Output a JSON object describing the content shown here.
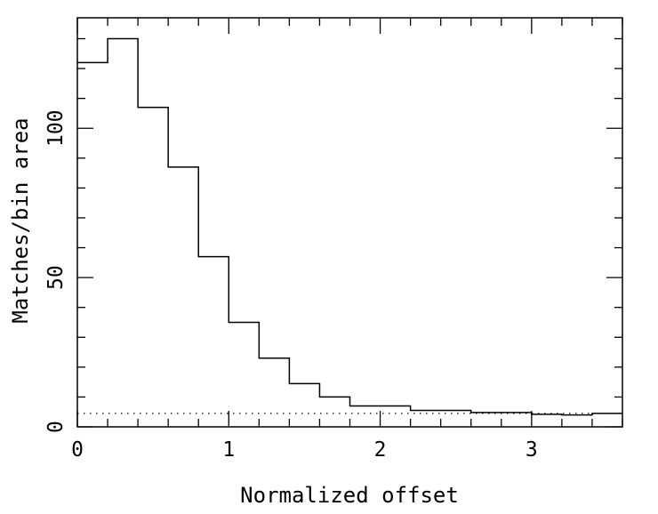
{
  "chart_data": {
    "type": "histogram",
    "title": "",
    "xlabel": "Normalized offset",
    "ylabel": "Matches/bin area",
    "xlim": [
      0,
      3.6
    ],
    "ylim": [
      0,
      137
    ],
    "x_ticks": [
      0,
      1,
      2,
      3
    ],
    "y_ticks": [
      0,
      50,
      100
    ],
    "bin_width": 0.2,
    "bins": [
      {
        "x0": 0.0,
        "x1": 0.2,
        "y": 122
      },
      {
        "x0": 0.2,
        "x1": 0.4,
        "y": 130
      },
      {
        "x0": 0.4,
        "x1": 0.6,
        "y": 107
      },
      {
        "x0": 0.6,
        "x1": 0.8,
        "y": 87
      },
      {
        "x0": 0.8,
        "x1": 1.0,
        "y": 57
      },
      {
        "x0": 1.0,
        "x1": 1.2,
        "y": 35
      },
      {
        "x0": 1.2,
        "x1": 1.4,
        "y": 23
      },
      {
        "x0": 1.4,
        "x1": 1.6,
        "y": 14.5
      },
      {
        "x0": 1.6,
        "x1": 1.8,
        "y": 10
      },
      {
        "x0": 1.8,
        "x1": 2.0,
        "y": 7
      },
      {
        "x0": 2.0,
        "x1": 2.2,
        "y": 7
      },
      {
        "x0": 2.2,
        "x1": 2.4,
        "y": 5.5
      },
      {
        "x0": 2.4,
        "x1": 2.6,
        "y": 5.5
      },
      {
        "x0": 2.6,
        "x1": 2.8,
        "y": 4.8
      },
      {
        "x0": 2.8,
        "x1": 3.0,
        "y": 4.8
      },
      {
        "x0": 3.0,
        "x1": 3.2,
        "y": 4.2
      },
      {
        "x0": 3.2,
        "x1": 3.4,
        "y": 4.0
      },
      {
        "x0": 3.4,
        "x1": 3.6,
        "y": 4.5
      }
    ],
    "reference_line": {
      "style": "dotted",
      "y": 4.5
    },
    "grid": false,
    "legend": "none"
  }
}
